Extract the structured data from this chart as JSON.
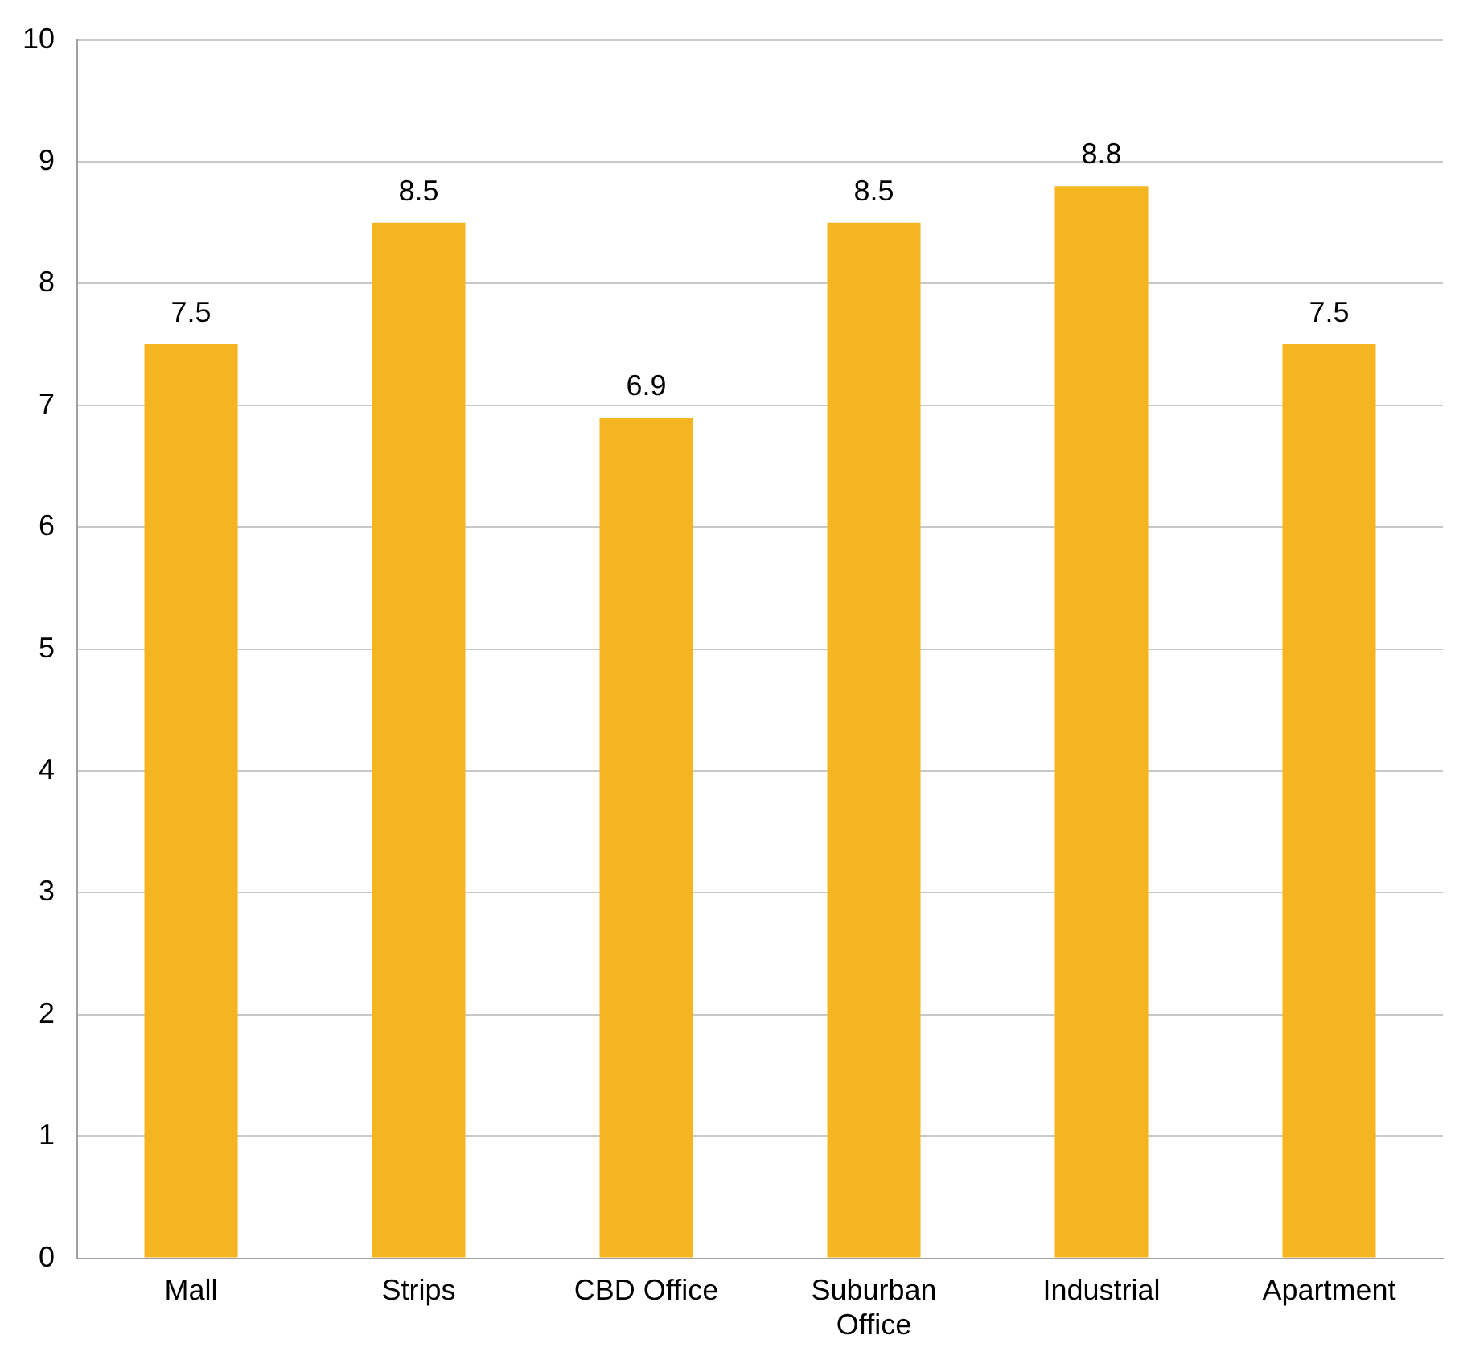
{
  "chart_data": {
    "type": "bar",
    "categories": [
      "Mall",
      "Strips",
      "CBD Office",
      "Suburban Office",
      "Industrial",
      "Apartment"
    ],
    "values": [
      7.5,
      8.5,
      6.9,
      8.5,
      8.8,
      7.5
    ],
    "color": "#f4b520",
    "ylim": [
      0,
      10
    ],
    "yticks": [
      0,
      1,
      2,
      3,
      4,
      5,
      6,
      7,
      8,
      9,
      10
    ],
    "grid": "y",
    "data_labels": true,
    "legend": false
  }
}
